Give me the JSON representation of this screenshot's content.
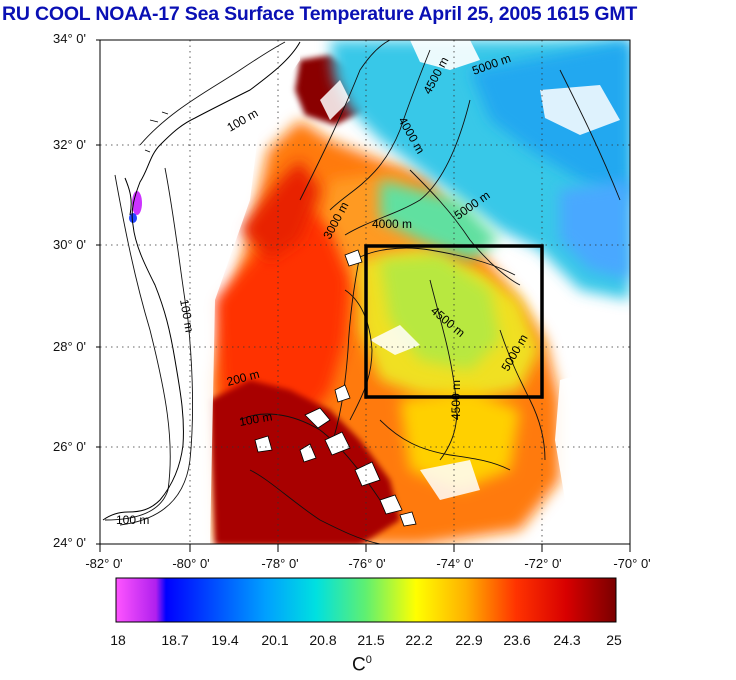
{
  "title": "RU COOL  NOAA-17 Sea Surface Temperature April 25, 2005 1615 GMT",
  "map": {
    "lon_range": [
      -82,
      -70
    ],
    "lat_range": [
      24,
      34
    ],
    "y_ticks": [
      "34° 0'",
      "32° 0'",
      "30° 0'",
      "28° 0'",
      "26° 0'",
      "24° 0'"
    ],
    "x_ticks": [
      "-82° 0'",
      "-80° 0'",
      "-78° 0'",
      "-76° 0'",
      "-74° 0'",
      "-72° 0'",
      "-70° 0'"
    ],
    "study_box": {
      "lon": [
        -76,
        -72
      ],
      "lat": [
        27,
        30
      ]
    },
    "contours": [
      {
        "label": "100 m"
      },
      {
        "label": "100 m"
      },
      {
        "label": "100 m"
      },
      {
        "label": "3000 m"
      },
      {
        "label": "4000 m"
      },
      {
        "label": "4500 m"
      },
      {
        "label": "5000 m"
      },
      {
        "label": "4000 m"
      },
      {
        "label": "4500 m"
      },
      {
        "label": "5000 m"
      },
      {
        "label": "4500 m"
      },
      {
        "label": "5000 m"
      },
      {
        "label": "200 m"
      },
      {
        "label": "100 m"
      }
    ]
  },
  "colorbar": {
    "labels": [
      "18",
      "18.7",
      "19.4",
      "20.1",
      "20.8",
      "21.5",
      "22.2",
      "22.9",
      "23.6",
      "24.3",
      "25"
    ],
    "unit": "C",
    "unit_sup": "0",
    "colors": [
      "#ff44ff",
      "#a020f0",
      "#0000ff",
      "#0066ff",
      "#00aaff",
      "#00dddd",
      "#44ee88",
      "#aaff44",
      "#ffff00",
      "#ffaa00",
      "#ff5500",
      "#ff1100",
      "#cc0000",
      "#880000"
    ]
  },
  "colors": {
    "title": "#0a10b4",
    "box": "#000000",
    "land": "#ffffff",
    "cloud": "#ffffff"
  }
}
